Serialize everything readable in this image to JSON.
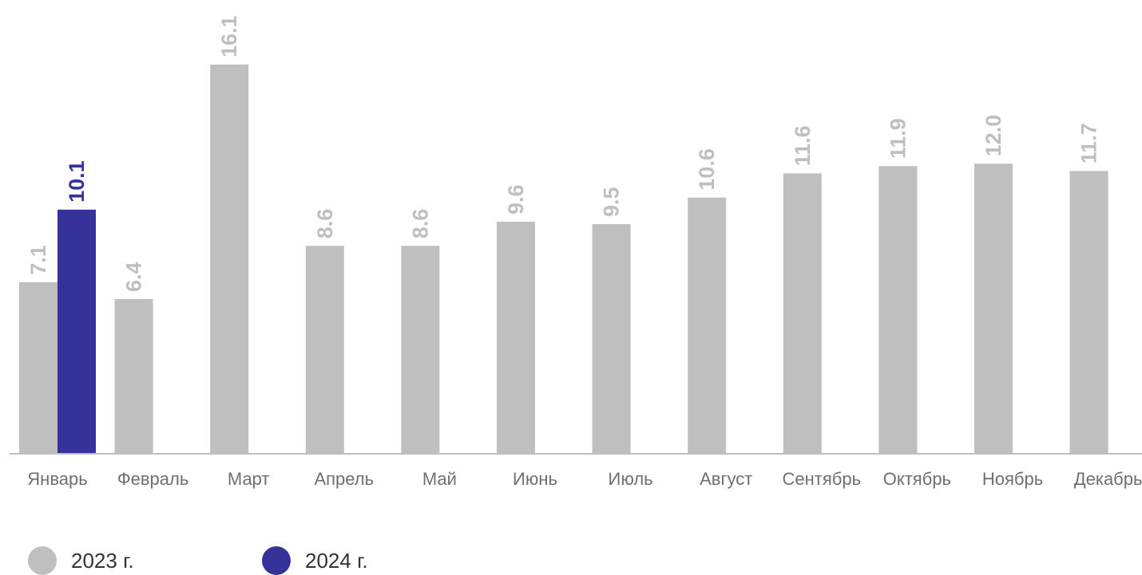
{
  "chart_data": {
    "type": "bar",
    "categories": [
      "Январь",
      "Февраль",
      "Март",
      "Апрель",
      "Май",
      "Июнь",
      "Июль",
      "Август",
      "Сентябрь",
      "Октябрь",
      "Ноябрь",
      "Декабрь"
    ],
    "series": [
      {
        "name": "2023 г.",
        "color": "#bfbfbf",
        "label_color": "#bfbfbf",
        "values": [
          7.1,
          6.4,
          16.1,
          8.6,
          8.6,
          9.6,
          9.5,
          10.6,
          11.6,
          11.9,
          12.0,
          11.7
        ],
        "labels": [
          "7.1",
          "6.4",
          "16.1",
          "8.6",
          "8.6",
          "9.6",
          "9.5",
          "10.6",
          "11.6",
          "11.9",
          "12.0",
          "11.7"
        ]
      },
      {
        "name": "2024 г.",
        "color": "#35329a",
        "label_color": "#35329a",
        "values": [
          10.1,
          null,
          null,
          null,
          null,
          null,
          null,
          null,
          null,
          null,
          null,
          null
        ],
        "labels": [
          "10.1",
          "",
          "",
          "",
          "",
          "",
          "",
          "",
          "",
          "",
          "",
          ""
        ]
      }
    ],
    "title": "",
    "xlabel": "",
    "ylabel": "",
    "ylim": [
      0,
      16.1
    ],
    "grid": false,
    "data_labels": "rotated-vertical",
    "legend_position": "bottom-left"
  },
  "legend": {
    "items": [
      {
        "label": "2023 г.",
        "color": "#bfbfbf"
      },
      {
        "label": "2024 г.",
        "color": "#35329a"
      }
    ]
  }
}
